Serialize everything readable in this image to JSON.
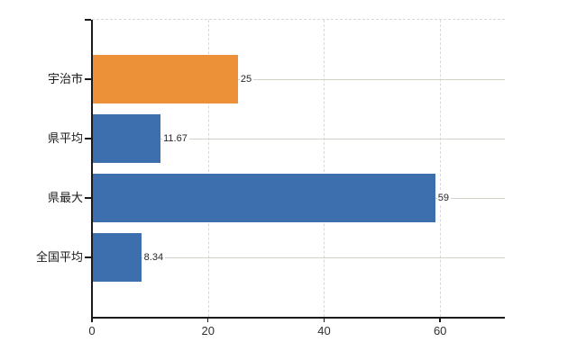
{
  "chart_data": {
    "type": "bar",
    "orientation": "horizontal",
    "title": "",
    "xlabel": "",
    "ylabel": "",
    "categories": [
      "宇治市",
      "県平均",
      "県最大",
      "全国平均"
    ],
    "values": [
      25,
      11.67,
      59,
      8.34
    ],
    "value_labels": [
      "25",
      "11.67",
      "59",
      "8.34"
    ],
    "bar_colors": [
      "#ED9138",
      "#3D6FAE",
      "#3D6FAE",
      "#3D6FAE"
    ],
    "x_ticks": [
      0,
      20,
      40,
      60
    ],
    "x_tick_labels": [
      "0",
      "20",
      "40",
      "60"
    ],
    "xlim": [
      0,
      71
    ],
    "legend": "none",
    "grid": {
      "horizontal": "solid",
      "vertical": "dashed",
      "plot_top_border": "dashed"
    }
  },
  "colors": {
    "background": "#ffffff",
    "axis": "#1a1a1a",
    "grid_horizontal": "#ccd5c8",
    "grid_vertical": "#d8d8d8",
    "bar_highlight_orange": "#ED9138",
    "bar_blue": "#3D6FAE",
    "category_text": "#1a1a1a",
    "value_text": "#262626",
    "tick_text": "#303030"
  }
}
